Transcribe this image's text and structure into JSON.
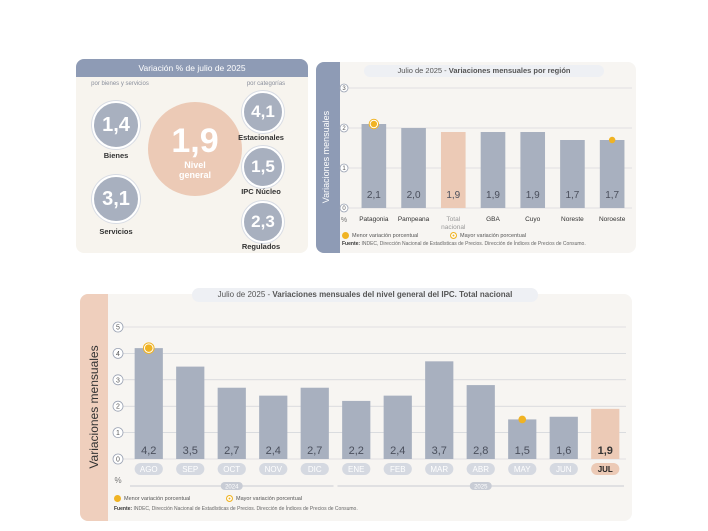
{
  "panel1": {
    "title": "Variación % de julio de 2025",
    "sub_left": "por bienes y servicios",
    "sub_right": "por categorías",
    "main": {
      "value": "1,9",
      "label_line1": "Nivel",
      "label_line2": "general"
    },
    "left_items": [
      {
        "value": "1,4",
        "label": "Bienes"
      },
      {
        "value": "3,1",
        "label": "Servicios"
      }
    ],
    "right_items": [
      {
        "value": "4,1",
        "label": "Estacionales"
      },
      {
        "value": "1,5",
        "label": "IPC Núcleo"
      },
      {
        "value": "2,3",
        "label": "Regulados"
      }
    ]
  },
  "panel2": {
    "title_prefix": "Julio de 2025 - ",
    "title_bold": "Variaciones mensuales por región",
    "ylabel": "Variaciones mensuales",
    "legend_min": "Menor variación porcentual",
    "legend_max": "Mayor variación porcentual",
    "source_label": "Fuente:",
    "source_text": " INDEC, Dirección Nacional de Estadísticas de Precios. Dirección de Índices de Precios de Consumo."
  },
  "panel3": {
    "title_prefix": "Julio de 2025 - ",
    "title_bold": "Variaciones mensuales del nivel general del IPC. Total nacional",
    "ylabel": "Variaciones mensuales",
    "legend_min": "Menor variación porcentual",
    "legend_max": "Mayor variación porcentual",
    "source_label": "Fuente:",
    "source_text": " INDEC, Dirección Nacional de Estadísticas de Precios. Dirección de Índices de Precios de Consumo."
  },
  "colors": {
    "bar": "#a8b0bf",
    "highlight": "#eccab6",
    "marker": "#f0b323",
    "accent": "#8e9bb5"
  },
  "chart_data": [
    {
      "type": "bar",
      "title": "Julio de 2025 - Variaciones mensuales por región",
      "categories": [
        "Patagonia",
        "Pampeana",
        "Total nacional",
        "GBA",
        "Cuyo",
        "Noreste",
        "Noroeste"
      ],
      "category_lines": [
        [
          "Patagonia"
        ],
        [
          "Pampeana"
        ],
        [
          "Total",
          "nacional"
        ],
        [
          "GBA"
        ],
        [
          "Cuyo"
        ],
        [
          "Noreste"
        ],
        [
          "Noroeste"
        ]
      ],
      "values": [
        2.1,
        2.0,
        1.9,
        1.9,
        1.9,
        1.7,
        1.7
      ],
      "value_labels": [
        "2,1",
        "2,0",
        "1,9",
        "1,9",
        "1,9",
        "1,7",
        "1,7"
      ],
      "highlight_index": 2,
      "max_marker_indices": [
        0
      ],
      "min_marker_indices": [
        6
      ],
      "ylabel": "Variaciones mensuales",
      "yunit": "%",
      "yticks": [
        0,
        1,
        2,
        3
      ],
      "ylim": [
        0,
        3
      ]
    },
    {
      "type": "bar",
      "title": "Julio de 2025 - Variaciones mensuales del nivel general del IPC. Total nacional",
      "categories": [
        "AGO",
        "SEP",
        "OCT",
        "NOV",
        "DIC",
        "ENE",
        "FEB",
        "MAR",
        "ABR",
        "MAY",
        "JUN",
        "JUL"
      ],
      "values": [
        4.2,
        3.5,
        2.7,
        2.4,
        2.7,
        2.2,
        2.4,
        3.7,
        2.8,
        1.5,
        1.6,
        1.9
      ],
      "value_labels": [
        "4,2",
        "3,5",
        "2,7",
        "2,4",
        "2,7",
        "2,2",
        "2,4",
        "3,7",
        "2,8",
        "1,5",
        "1,6",
        "1,9"
      ],
      "highlight_index": 11,
      "max_marker_indices": [
        0
      ],
      "min_marker_indices": [
        9
      ],
      "year_groups": [
        {
          "label": "2024",
          "start": 0,
          "end": 4
        },
        {
          "label": "2025",
          "start": 5,
          "end": 11
        }
      ],
      "ylabel": "Variaciones mensuales",
      "yunit": "%",
      "yticks": [
        0,
        1,
        2,
        3,
        4,
        5
      ],
      "ylim": [
        0,
        5
      ]
    }
  ]
}
